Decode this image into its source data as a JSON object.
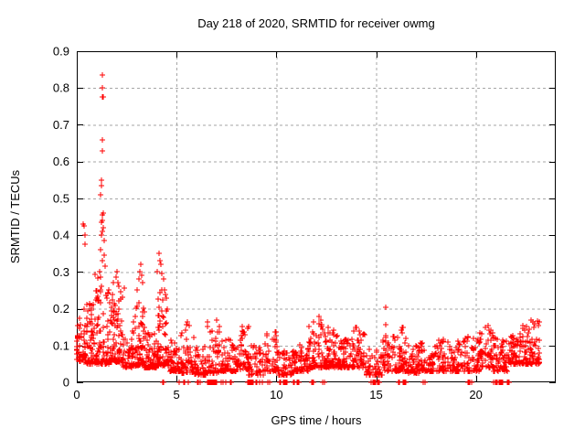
{
  "chart_data": {
    "type": "scatter",
    "title": "Day 218 of 2020, SRMTID for receiver owmg",
    "xlabel": "GPS time / hours",
    "ylabel": "SRMTID / TECUs",
    "xlim": [
      0,
      24
    ],
    "ylim": [
      0,
      0.9
    ],
    "xticks": [
      0,
      5,
      10,
      15,
      20
    ],
    "xtick_labels": [
      "0",
      "5",
      "10",
      "15",
      "20"
    ],
    "yticks": [
      0,
      0.1,
      0.2,
      0.3,
      0.4,
      0.5,
      0.6,
      0.7,
      0.8,
      0.9
    ],
    "ytick_labels": [
      "0",
      "0.1",
      "0.2",
      "0.3",
      "0.4",
      "0.5",
      "0.6",
      "0.7",
      "0.8",
      "0.9"
    ],
    "grid": true,
    "legend": "none",
    "marker": "plus",
    "marker_color": "#ff0000",
    "grid_color": "#a6a6a6",
    "axis_color": "#000000",
    "background_color": "#ffffff",
    "outlier_points": [
      [
        0.15,
        0.175
      ],
      [
        0.33,
        0.43
      ],
      [
        0.36,
        0.425
      ],
      [
        0.37,
        0.2
      ],
      [
        0.39,
        0.4
      ],
      [
        0.41,
        0.375
      ],
      [
        1.18,
        0.51
      ],
      [
        1.22,
        0.535
      ],
      [
        1.25,
        0.55
      ],
      [
        1.27,
        0.775
      ],
      [
        1.28,
        0.835
      ],
      [
        1.3,
        0.8
      ],
      [
        1.32,
        0.775
      ],
      [
        1.3,
        0.66
      ],
      [
        1.28,
        0.63
      ],
      [
        1.35,
        0.46
      ],
      [
        1.3,
        0.455
      ],
      [
        1.28,
        0.44
      ],
      [
        1.22,
        0.435
      ],
      [
        1.33,
        0.42
      ],
      [
        1.3,
        0.41
      ],
      [
        1.24,
        0.4
      ],
      [
        1.36,
        0.385
      ],
      [
        1.2,
        0.36
      ],
      [
        1.38,
        0.345
      ],
      [
        1.26,
        0.33
      ],
      [
        1.4,
        0.315
      ],
      [
        1.15,
        0.3
      ],
      [
        1.84,
        0.27
      ],
      [
        1.95,
        0.285
      ],
      [
        2.0,
        0.3
      ],
      [
        2.05,
        0.27
      ],
      [
        2.1,
        0.26
      ],
      [
        2.2,
        0.245
      ],
      [
        2.3,
        0.23
      ],
      [
        2.4,
        0.256
      ],
      [
        3.0,
        0.25
      ],
      [
        3.1,
        0.28
      ],
      [
        3.15,
        0.3
      ],
      [
        3.2,
        0.32
      ],
      [
        3.25,
        0.29
      ],
      [
        3.3,
        0.27
      ],
      [
        4.05,
        0.3
      ],
      [
        4.1,
        0.35
      ],
      [
        4.15,
        0.33
      ],
      [
        4.2,
        0.32
      ],
      [
        4.28,
        0.295
      ],
      [
        4.33,
        0.28
      ],
      [
        4.4,
        0.25
      ],
      [
        5.55,
        0.165
      ],
      [
        7.0,
        0.17
      ],
      [
        12.15,
        0.178
      ],
      [
        12.25,
        0.17
      ],
      [
        15.5,
        0.205
      ],
      [
        15.5,
        0.157
      ],
      [
        15.48,
        0.122
      ],
      [
        16.3,
        0.15
      ],
      [
        20.6,
        0.155
      ],
      [
        22.75,
        0.17
      ],
      [
        22.85,
        0.165
      ]
    ],
    "band_segments": [
      [
        0.0,
        0.5,
        0.055,
        0.16,
        60
      ],
      [
        0.5,
        0.9,
        0.05,
        0.22,
        55
      ],
      [
        0.9,
        1.6,
        0.05,
        0.3,
        95
      ],
      [
        1.6,
        2.3,
        0.055,
        0.24,
        80
      ],
      [
        2.3,
        2.8,
        0.04,
        0.13,
        55
      ],
      [
        2.8,
        3.4,
        0.045,
        0.22,
        70
      ],
      [
        3.4,
        4.0,
        0.04,
        0.15,
        60
      ],
      [
        4.0,
        4.6,
        0.045,
        0.26,
        70
      ],
      [
        4.6,
        5.2,
        0.03,
        0.12,
        55
      ],
      [
        5.2,
        5.9,
        0.025,
        0.16,
        55
      ],
      [
        5.9,
        6.5,
        0.02,
        0.1,
        48
      ],
      [
        6.5,
        7.2,
        0.025,
        0.17,
        55
      ],
      [
        7.2,
        8.0,
        0.03,
        0.12,
        58
      ],
      [
        8.0,
        8.6,
        0.035,
        0.16,
        55
      ],
      [
        8.6,
        9.4,
        0.02,
        0.1,
        48
      ],
      [
        9.4,
        10.1,
        0.03,
        0.14,
        55
      ],
      [
        10.1,
        10.9,
        0.02,
        0.085,
        48
      ],
      [
        10.9,
        11.6,
        0.03,
        0.11,
        55
      ],
      [
        11.6,
        12.5,
        0.04,
        0.175,
        78
      ],
      [
        12.5,
        13.2,
        0.04,
        0.15,
        65
      ],
      [
        13.2,
        13.8,
        0.04,
        0.12,
        55
      ],
      [
        13.8,
        14.5,
        0.04,
        0.15,
        60
      ],
      [
        14.5,
        15.3,
        0.02,
        0.09,
        48
      ],
      [
        15.3,
        16.0,
        0.03,
        0.13,
        55
      ],
      [
        16.0,
        16.6,
        0.03,
        0.15,
        55
      ],
      [
        16.6,
        17.2,
        0.025,
        0.1,
        50
      ],
      [
        17.2,
        18.0,
        0.03,
        0.11,
        55
      ],
      [
        18.0,
        18.8,
        0.03,
        0.12,
        55
      ],
      [
        18.8,
        19.5,
        0.03,
        0.12,
        55
      ],
      [
        19.5,
        20.2,
        0.03,
        0.13,
        55
      ],
      [
        20.2,
        20.9,
        0.04,
        0.15,
        60
      ],
      [
        20.9,
        21.6,
        0.03,
        0.12,
        55
      ],
      [
        21.6,
        22.3,
        0.05,
        0.14,
        65
      ],
      [
        22.3,
        23.2,
        0.05,
        0.17,
        85
      ]
    ],
    "zero_runs": [
      [
        4.28,
        4.4,
        3
      ],
      [
        5.1,
        5.22,
        3
      ],
      [
        5.32,
        5.42,
        3
      ],
      [
        5.56,
        5.62,
        2
      ],
      [
        6.0,
        6.18,
        4
      ],
      [
        6.55,
        7.02,
        18
      ],
      [
        7.25,
        7.47,
        6
      ],
      [
        7.6,
        7.76,
        5
      ],
      [
        8.55,
        8.82,
        10
      ],
      [
        8.95,
        9.35,
        14
      ],
      [
        9.55,
        9.66,
        3
      ],
      [
        10.1,
        10.52,
        12
      ],
      [
        10.8,
        10.92,
        3
      ],
      [
        11.0,
        11.18,
        6
      ],
      [
        11.75,
        11.87,
        3
      ],
      [
        12.3,
        12.42,
        2
      ],
      [
        14.75,
        15.16,
        12
      ],
      [
        16.1,
        16.52,
        10
      ],
      [
        17.3,
        17.46,
        5
      ],
      [
        19.6,
        19.82,
        6
      ],
      [
        20.85,
        21.42,
        16
      ],
      [
        21.55,
        21.68,
        4
      ]
    ],
    "synth_seed": 20200218
  }
}
